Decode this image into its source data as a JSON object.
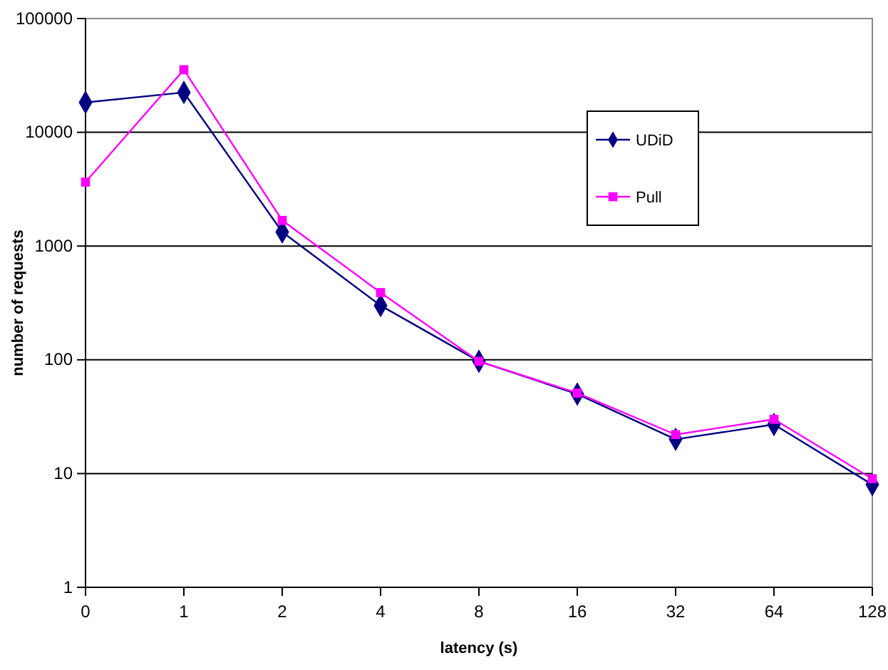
{
  "chart_data": {
    "type": "line",
    "xlabel": "latency (s)",
    "ylabel": "number of requests",
    "categories": [
      "0",
      "1",
      "2",
      "4",
      "8",
      "16",
      "32",
      "64",
      "128"
    ],
    "series": [
      {
        "name": "UDiD",
        "color": "#000080",
        "marker": "diamond",
        "values": [
          18300,
          22400,
          1330,
          300,
          97,
          50,
          20,
          27,
          8
        ]
      },
      {
        "name": "Pull",
        "color": "#ff00ff",
        "marker": "square",
        "values": [
          3650,
          35500,
          1680,
          390,
          97,
          51,
          22,
          30,
          9
        ]
      }
    ],
    "log": true,
    "ylim": [
      1,
      100000
    ],
    "yticks": [
      1,
      10,
      100,
      1000,
      10000,
      100000
    ],
    "grid": "y",
    "legend": "right"
  }
}
